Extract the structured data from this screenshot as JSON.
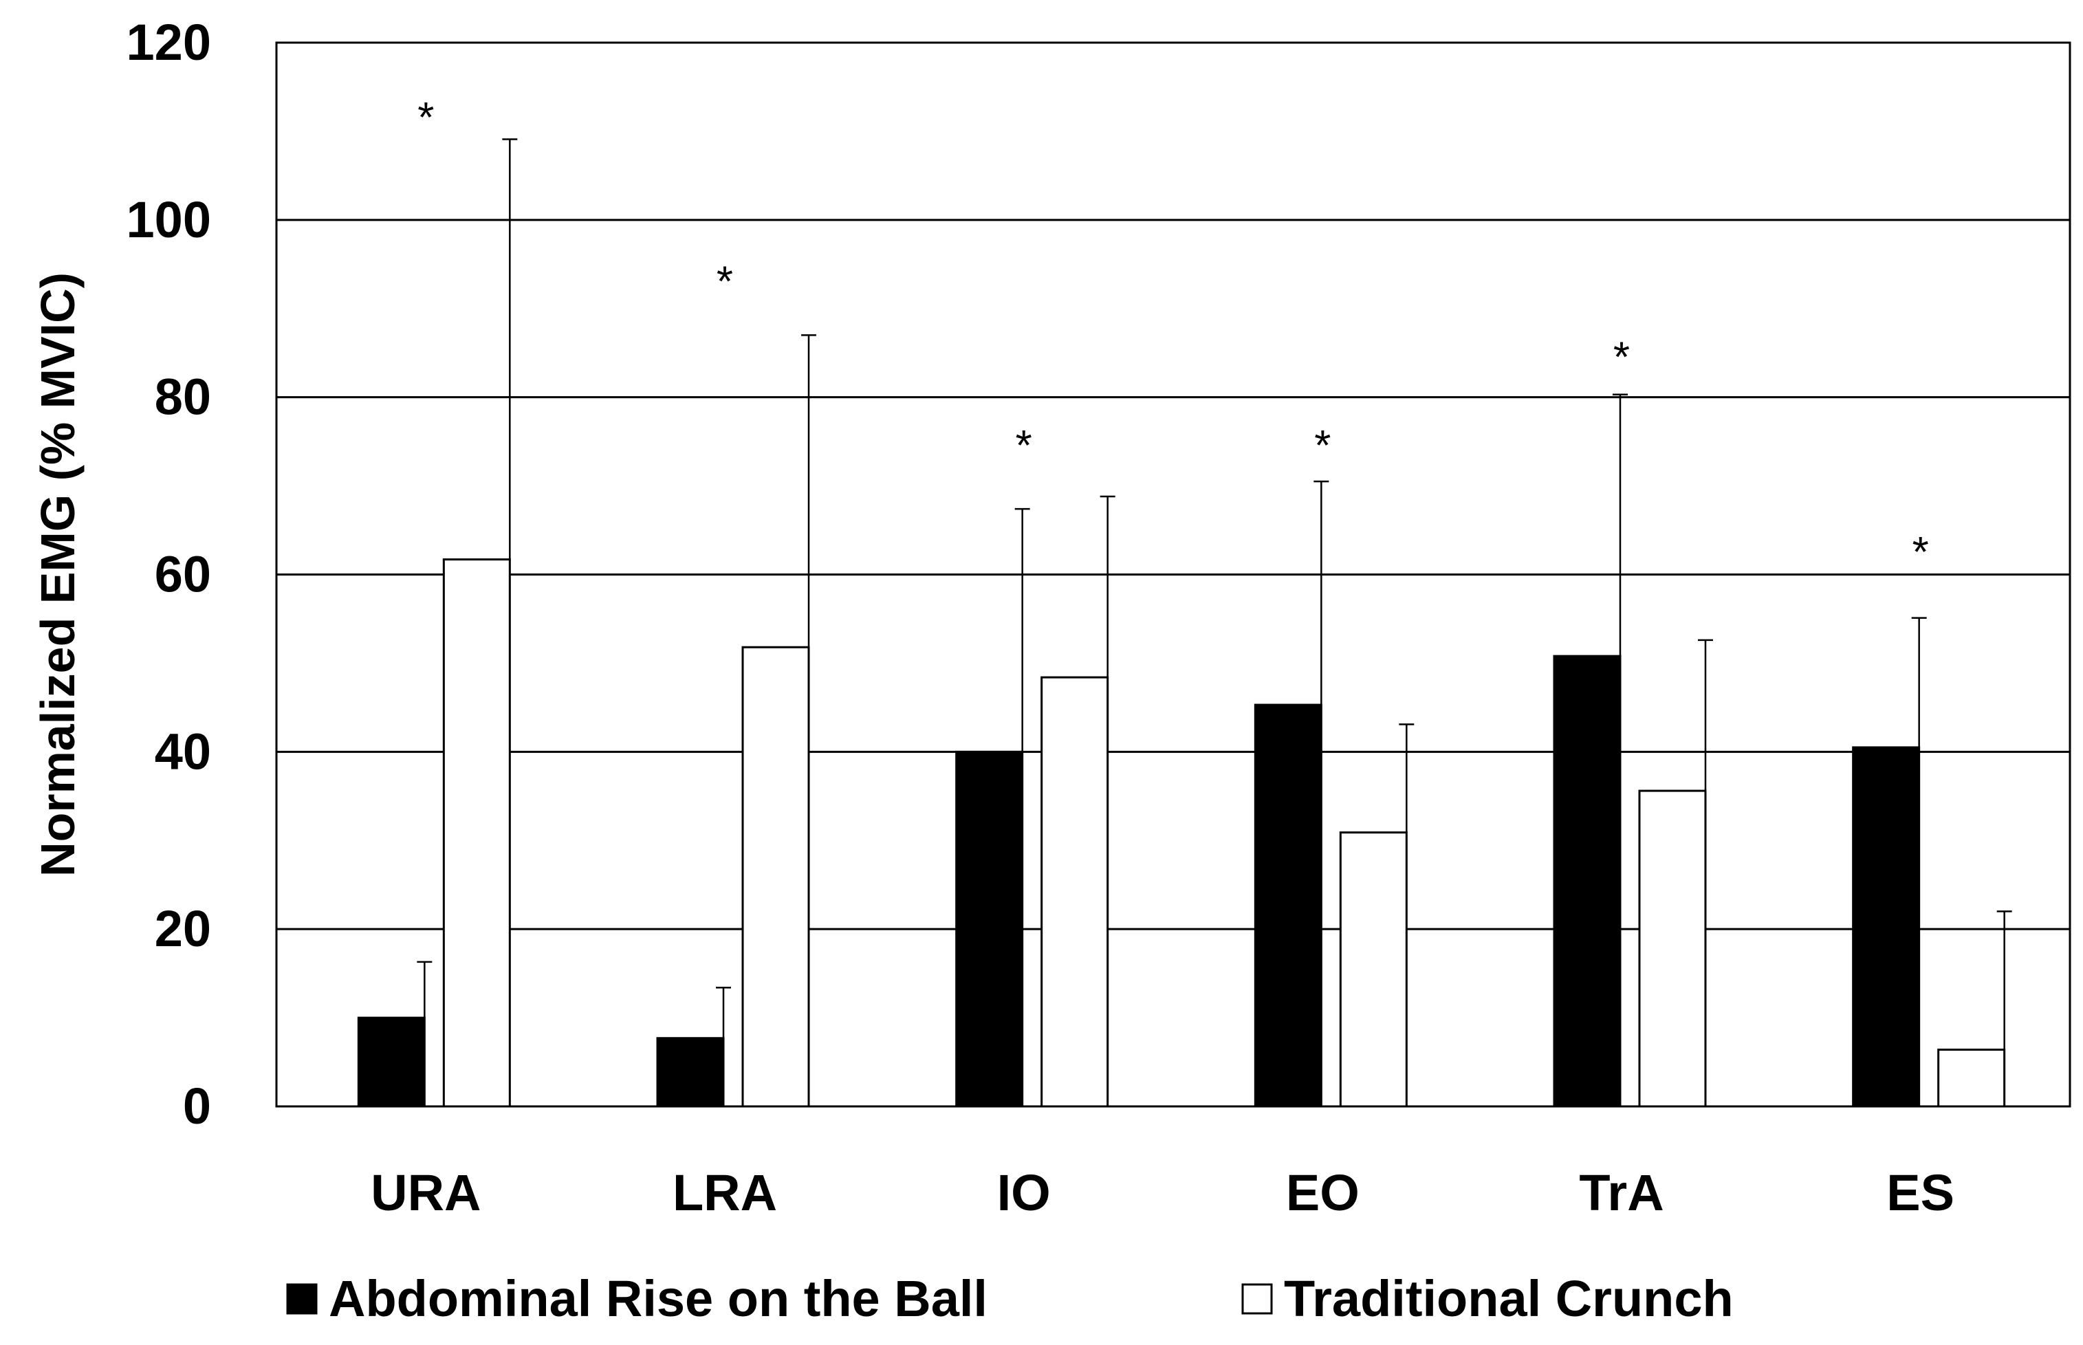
{
  "chart_data": {
    "type": "bar",
    "title": "",
    "xlabel": "",
    "ylabel": "Normalized EMG (% MVIC)",
    "ylim": [
      0,
      120
    ],
    "yticks": [
      0,
      20,
      40,
      60,
      80,
      100,
      120
    ],
    "grid": true,
    "legend_position": "bottom",
    "categories": [
      "URA",
      "LRA",
      "IO",
      "EO",
      "TrA",
      "ES"
    ],
    "series": [
      {
        "name": "Abdominal Rise on the Ball",
        "color": "#000000",
        "values": [
          10,
          7.7,
          40,
          45.3,
          50.8,
          40.5
        ],
        "errors": [
          6.3,
          5.7,
          27.4,
          25.2,
          29.5,
          14.6
        ]
      },
      {
        "name": "Traditional Crunch",
        "color": "#ffffff",
        "values": [
          61.7,
          51.8,
          48.4,
          30.9,
          35.6,
          6.4
        ],
        "errors": [
          47.4,
          35.2,
          20.4,
          12.2,
          17,
          15.6
        ]
      }
    ],
    "significance_marker": "*",
    "significance_y": [
      113,
      94.5,
      76,
      76,
      86,
      64
    ]
  }
}
